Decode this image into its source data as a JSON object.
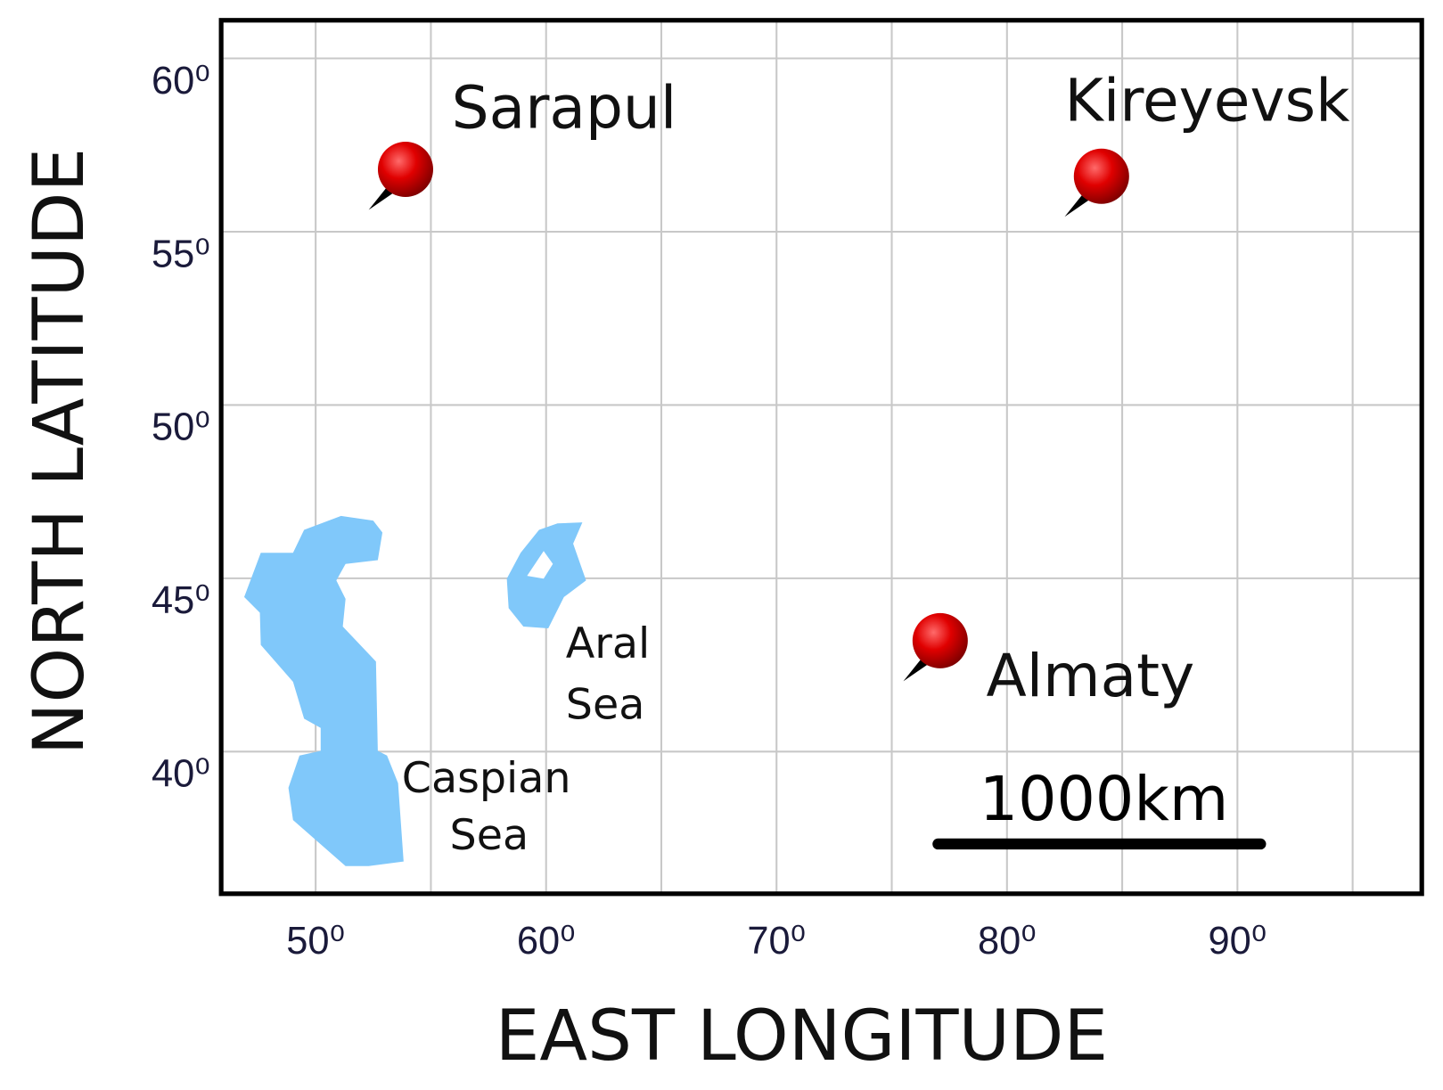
{
  "map": {
    "x_axis": {
      "title": "EAST LONGITUDE",
      "lim": [
        45.9,
        98
      ],
      "grid": [
        50,
        55,
        60,
        65,
        70,
        75,
        80,
        85,
        90,
        95
      ],
      "ticks": [
        {
          "value": 50,
          "label": "50⁰"
        },
        {
          "value": 60,
          "label": "60⁰"
        },
        {
          "value": 70,
          "label": "70⁰"
        },
        {
          "value": 80,
          "label": "80⁰"
        },
        {
          "value": 90,
          "label": "90⁰"
        }
      ]
    },
    "y_axis": {
      "title": "NORTH LATITUDE",
      "lim": [
        35.9,
        61.1
      ],
      "grid": [
        40,
        45,
        50,
        55,
        60
      ],
      "ticks": [
        {
          "value": 40,
          "label": "40⁰"
        },
        {
          "value": 45,
          "label": "45⁰"
        },
        {
          "value": 50,
          "label": "50⁰"
        },
        {
          "value": 55,
          "label": "55⁰"
        },
        {
          "value": 60,
          "label": "60⁰"
        }
      ]
    },
    "cities": [
      {
        "name": "Sarapul",
        "lon": 53.9,
        "lat": 56.8
      },
      {
        "name": "Kireyevsk",
        "lon": 84.1,
        "lat": 56.6
      },
      {
        "name": "Almaty",
        "lon": 77.1,
        "lat": 43.2
      }
    ],
    "seas": [
      {
        "lines": [
          "Caspian",
          "Sea"
        ]
      },
      {
        "lines": [
          "Aral",
          "Sea"
        ]
      }
    ],
    "scale_bar": {
      "label": "1000km"
    }
  }
}
